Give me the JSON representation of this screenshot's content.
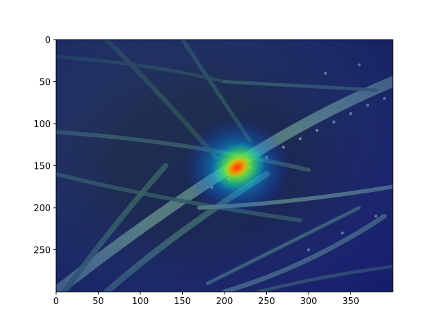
{
  "chart_data": {
    "type": "heatmap",
    "title": "",
    "xlabel": "",
    "ylabel": "",
    "xlim": [
      0,
      400
    ],
    "ylim": [
      300,
      0
    ],
    "y_inverted": true,
    "grid": false,
    "colormap": "jet",
    "overlay_on_photo": true,
    "photo_description": "dark green grass blades with water droplets, one diagonal blade crossing the image",
    "xticks": [
      0,
      50,
      100,
      150,
      200,
      250,
      300,
      350
    ],
    "yticks": [
      0,
      50,
      100,
      150,
      200,
      250
    ],
    "xtick_labels": [
      "0",
      "50",
      "100",
      "150",
      "200",
      "250",
      "300",
      "350"
    ],
    "ytick_labels": [
      "0",
      "50",
      "100",
      "150",
      "200",
      "250"
    ],
    "hotspot": {
      "center_x": 215,
      "center_y": 152,
      "peak": 1.0,
      "note": "attention peak on the diagonal grass blade"
    },
    "colors": {
      "background_photo": "#1f2b44",
      "heat_low": "#1a2fd0",
      "heat_high": "#ff2a00"
    }
  }
}
